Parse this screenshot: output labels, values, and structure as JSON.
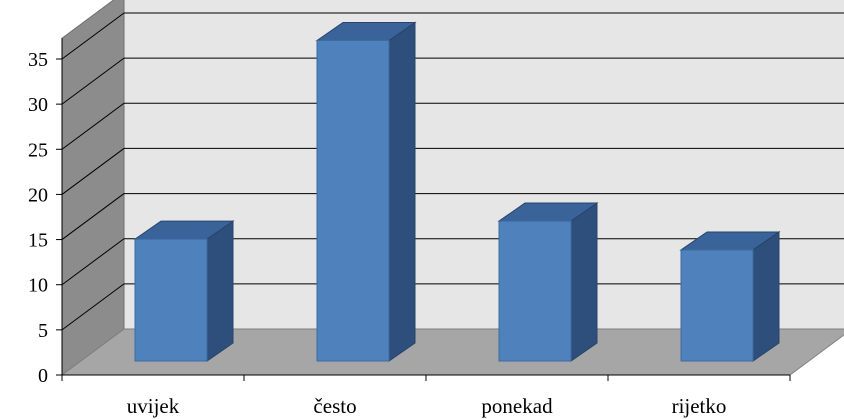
{
  "chart_data": {
    "type": "bar",
    "style": "3d-column",
    "title": "",
    "xlabel": "",
    "ylabel": "",
    "categories": [
      "uvijek",
      "često",
      "ponekad",
      "rijetko"
    ],
    "values": [
      13.5,
      35.5,
      15.5,
      12.3
    ],
    "ylim": [
      0,
      35
    ],
    "yticks": [
      "0",
      "5",
      "10",
      "15",
      "20",
      "25",
      "30",
      "35"
    ],
    "grid": true,
    "legend": "none",
    "colors": {
      "bar_front": "#4f81bd",
      "bar_side": "#2e4f7b",
      "bar_top": "#3a6499",
      "back_wall": "#e6e6e6",
      "side_wall": "#8c8c8c",
      "floor": "#a6a6a6",
      "gridline": "#000000"
    }
  }
}
